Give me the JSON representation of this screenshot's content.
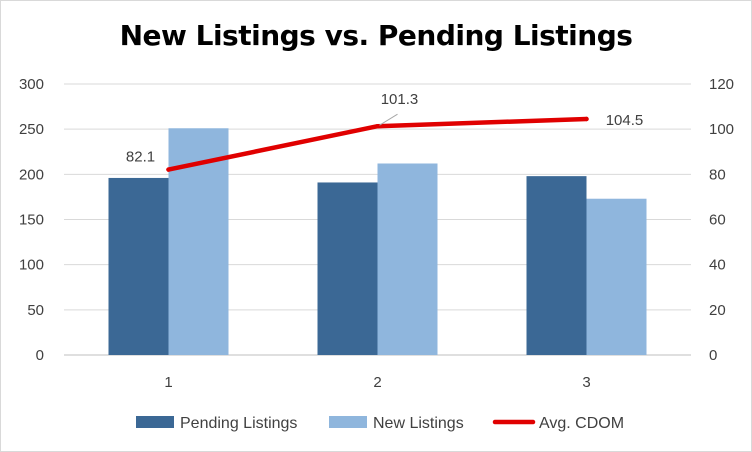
{
  "chart_data": {
    "type": "bar",
    "title": "New Listings vs. Pending Listings",
    "categories": [
      "1",
      "2",
      "3"
    ],
    "series": [
      {
        "name": "Pending Listings",
        "type": "bar",
        "axis": "left",
        "color": "#3b6895",
        "values": [
          196,
          191,
          198
        ]
      },
      {
        "name": "New Listings",
        "type": "bar",
        "axis": "left",
        "color": "#8fb6dd",
        "values": [
          251,
          212,
          173
        ]
      },
      {
        "name": "Avg. CDOM",
        "type": "line",
        "axis": "right",
        "color": "#e00000",
        "values": [
          82.1,
          101.3,
          104.5
        ],
        "data_labels": [
          "82.1",
          "101.3",
          "104.5"
        ]
      }
    ],
    "y_left": {
      "min": 0,
      "max": 300,
      "step": 50,
      "ticks": [
        "0",
        "50",
        "100",
        "150",
        "200",
        "250",
        "300"
      ]
    },
    "y_right": {
      "min": 0,
      "max": 120,
      "step": 20,
      "ticks": [
        "0",
        "20",
        "40",
        "60",
        "80",
        "100",
        "120"
      ]
    },
    "xlabel": "",
    "ylabel": "",
    "grid": true,
    "legend_position": "bottom"
  }
}
